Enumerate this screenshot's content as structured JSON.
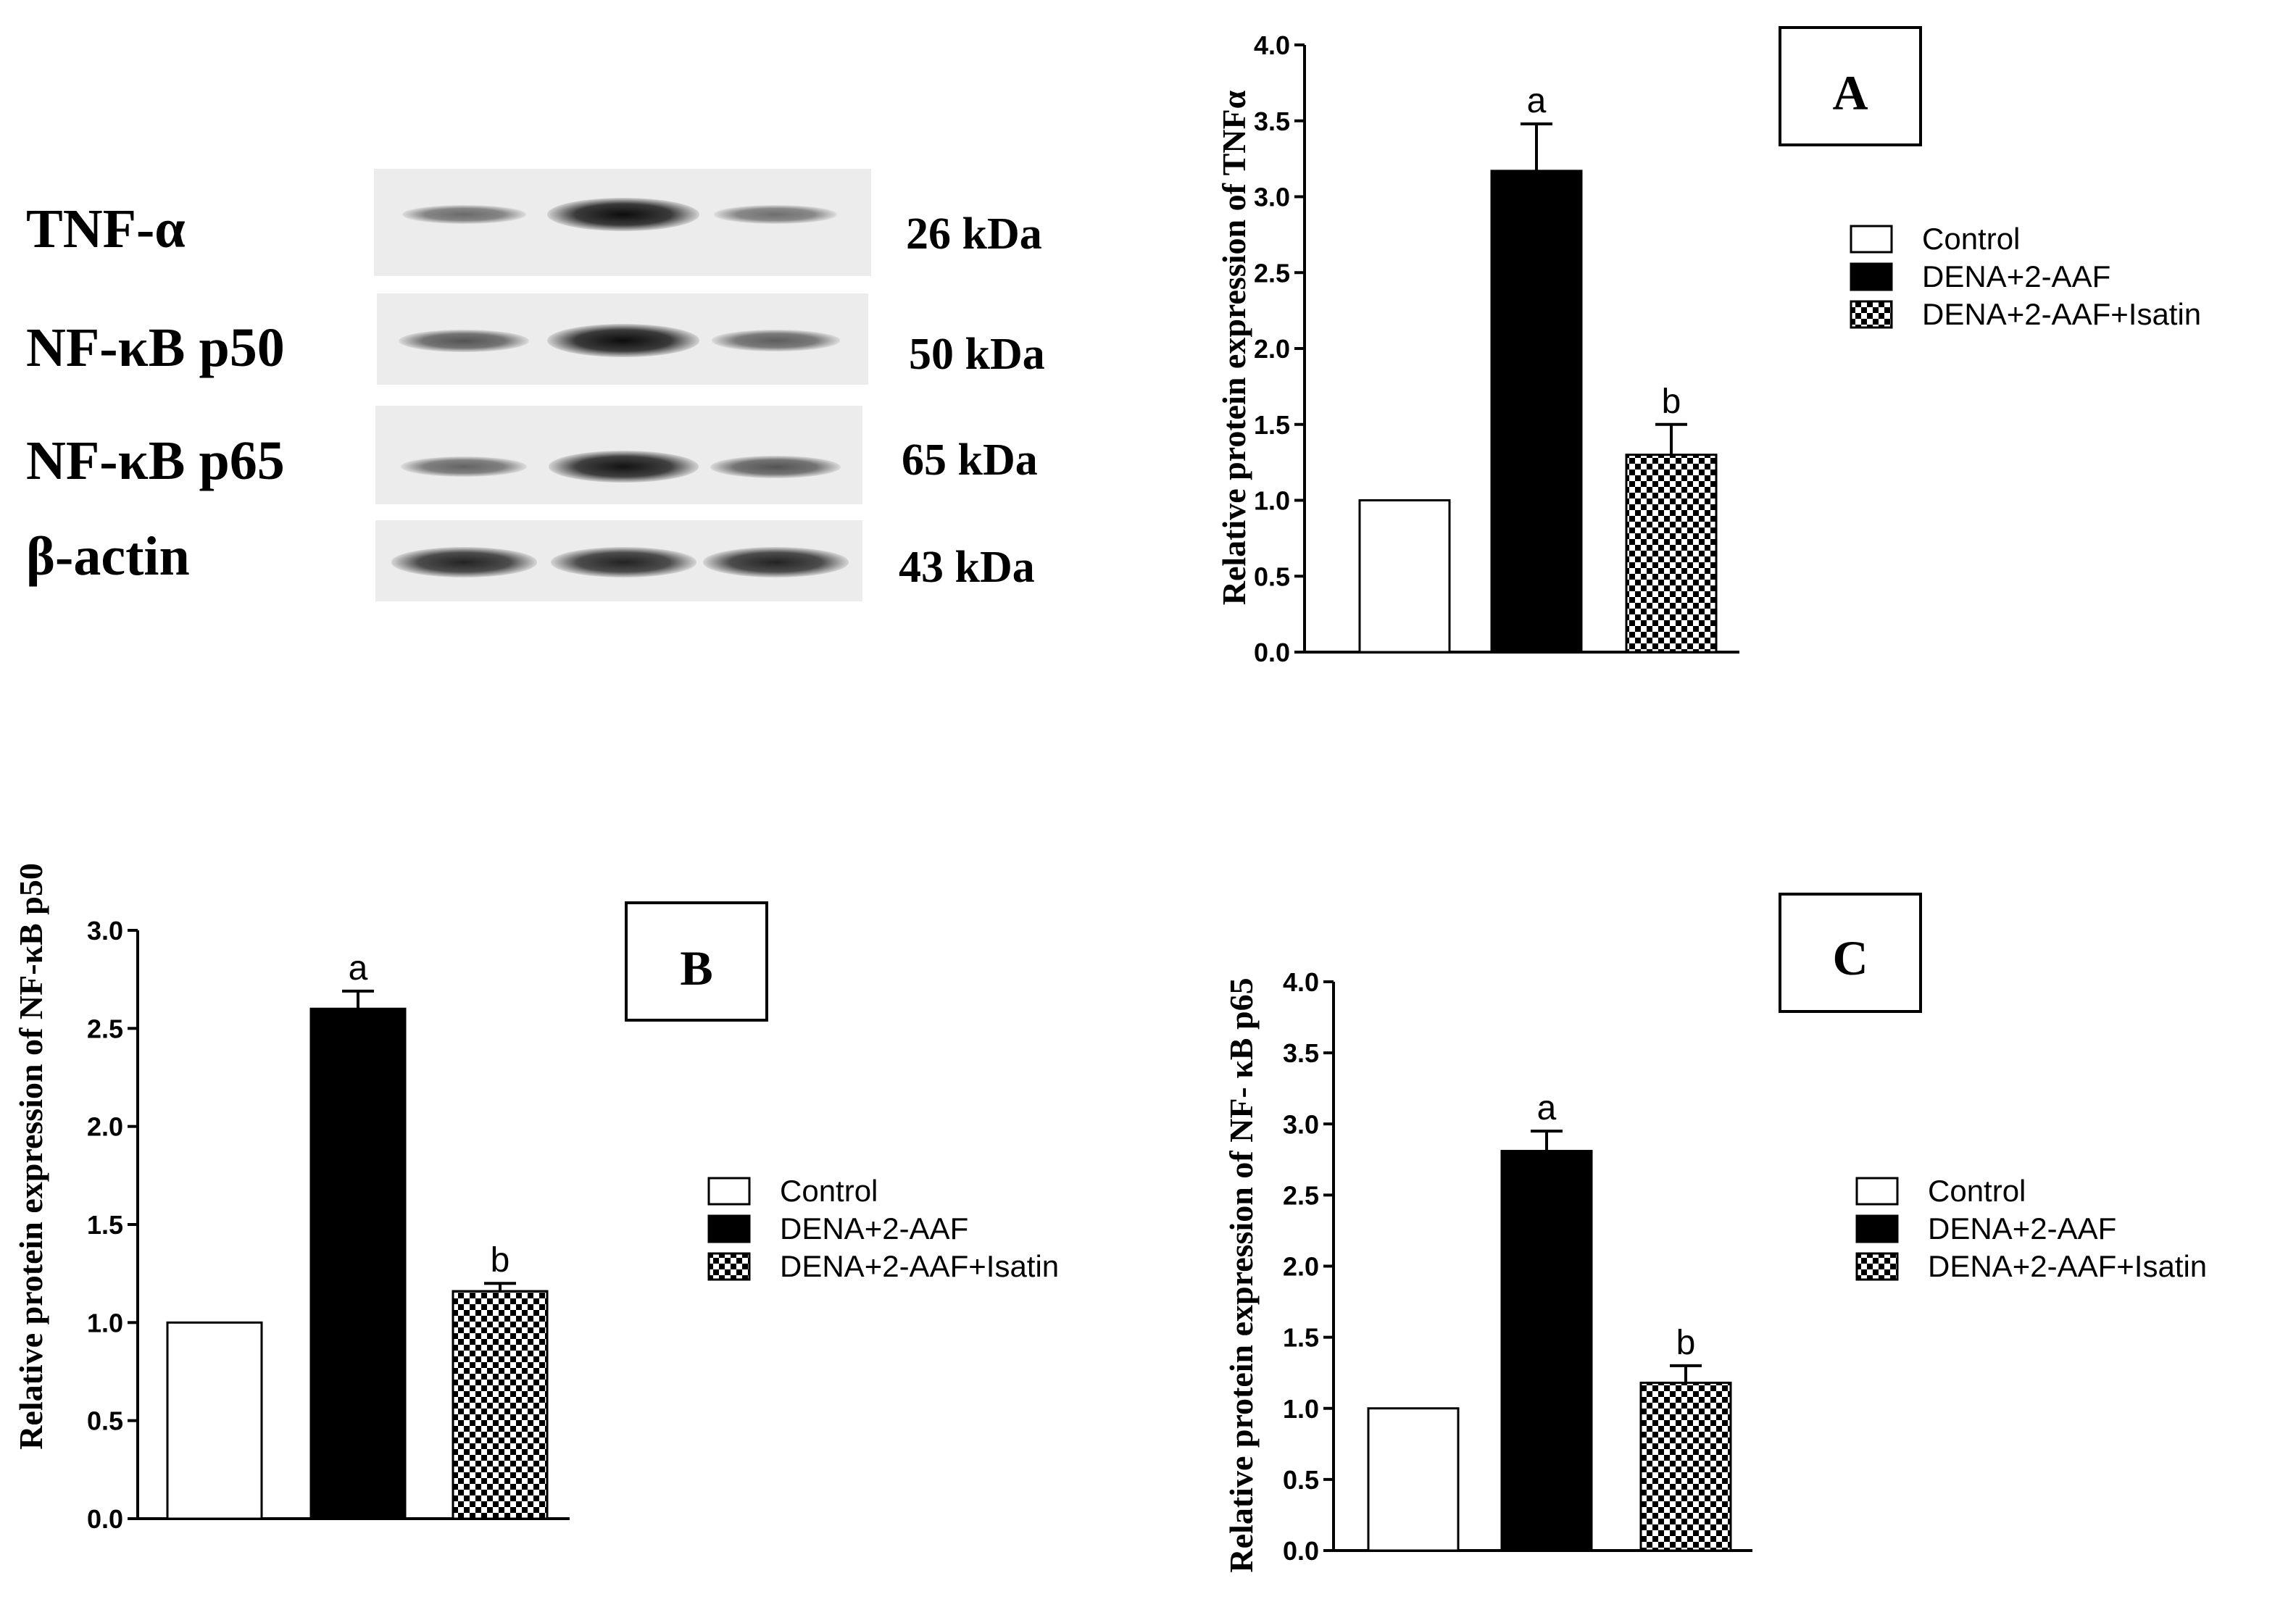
{
  "western_blot": {
    "rows": [
      {
        "protein": "TNF-α",
        "size": "26 kDa",
        "band_intensity": [
          0.35,
          1.0,
          0.32
        ]
      },
      {
        "protein": "NF-κB p50",
        "size": "50 kDa",
        "band_intensity": [
          0.5,
          1.0,
          0.45
        ]
      },
      {
        "protein": "NF-κB p65",
        "size": "65 kDa",
        "band_intensity": [
          0.4,
          0.95,
          0.5
        ]
      },
      {
        "protein": "β-actin",
        "size": "43 kDa",
        "band_intensity": [
          0.85,
          0.85,
          0.85
        ]
      }
    ]
  },
  "colors": {
    "control": "#ffffff",
    "dena": "#000000",
    "isatin_pattern": "checkerboard"
  },
  "chart_data": [
    {
      "panel": "A",
      "type": "bar",
      "categories": [
        "Control",
        "DENA+2-AAF",
        "DENA+2-AAF+Isatin"
      ],
      "values": [
        1.0,
        3.17,
        1.3
      ],
      "errors": [
        0,
        0.31,
        0.2
      ],
      "significance": [
        "",
        "a",
        "b"
      ],
      "ylabel": "Relative protein expression of TNFα",
      "ylim": [
        0,
        4.0
      ],
      "yticks": [
        "0.0",
        "0.5",
        "1.0",
        "1.5",
        "2.0",
        "2.5",
        "3.0",
        "3.5",
        "4.0"
      ],
      "legend": [
        "Control",
        "DENA+2-AAF",
        "DENA+2-AAF+Isatin"
      ],
      "legend_position": "right"
    },
    {
      "panel": "B",
      "type": "bar",
      "categories": [
        "Control",
        "DENA+2-AAF",
        "DENA+2-AAF+Isatin"
      ],
      "values": [
        1.0,
        2.6,
        1.16
      ],
      "errors": [
        0,
        0.09,
        0.04
      ],
      "significance": [
        "",
        "a",
        "b"
      ],
      "ylabel": "Relative protein expression of NF-κB p50",
      "ylim": [
        0,
        3.0
      ],
      "yticks": [
        "0.0",
        "0.5",
        "1.0",
        "1.5",
        "2.0",
        "2.5",
        "3.0"
      ],
      "legend": [
        "Control",
        "DENA+2-AAF",
        "DENA+2-AAF+Isatin"
      ],
      "legend_position": "right"
    },
    {
      "panel": "C",
      "type": "bar",
      "categories": [
        "Control",
        "DENA+2-AAF",
        "DENA+2-AAF+Isatin"
      ],
      "values": [
        1.0,
        2.81,
        1.18
      ],
      "errors": [
        0,
        0.14,
        0.12
      ],
      "significance": [
        "",
        "a",
        "b"
      ],
      "ylabel": "Relative  protein expression of NF- κB p65",
      "ylim": [
        0,
        4.0
      ],
      "yticks": [
        "0.0",
        "0.5",
        "1.0",
        "1.5",
        "2.0",
        "2.5",
        "3.0",
        "3.5",
        "4.0"
      ],
      "legend": [
        "Control",
        "DENA+2-AAF",
        "DENA+2-AAF+Isatin"
      ],
      "legend_position": "right"
    }
  ]
}
